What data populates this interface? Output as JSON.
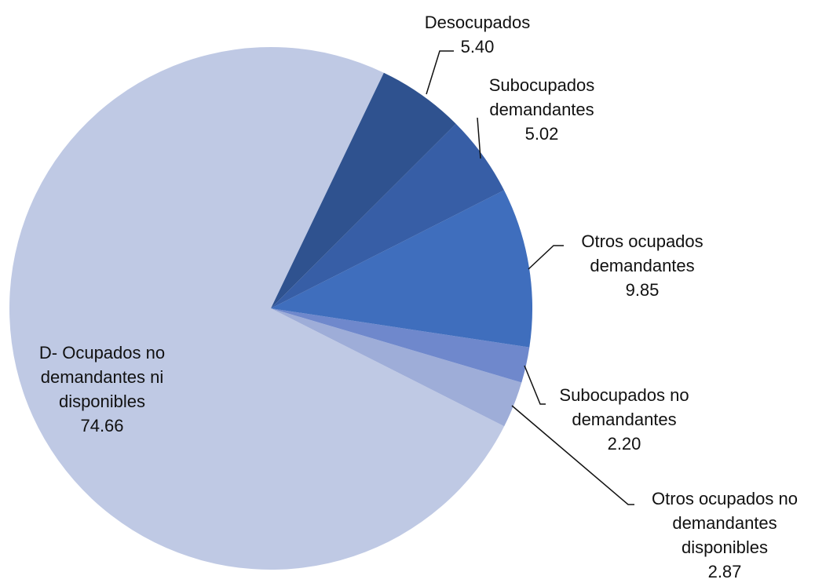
{
  "chart_data": {
    "type": "pie",
    "categories": [
      "Desocupados",
      "Subocupados demandantes",
      "Otros ocupados demandantes",
      "Subocupados no demandantes",
      "Otros ocupados no demandantes disponibles",
      "D- Ocupados no demandantes ni disponibles"
    ],
    "values": [
      5.4,
      5.02,
      9.85,
      2.2,
      2.87,
      74.66
    ],
    "value_labels": [
      "5.40",
      "5.02",
      "9.85",
      "2.20",
      "2.87",
      "74.66"
    ],
    "colors": [
      "#2f528f",
      "#375ea6",
      "#3f6ebd",
      "#6f88cc",
      "#9eadd8",
      "#bfc9e4"
    ]
  }
}
